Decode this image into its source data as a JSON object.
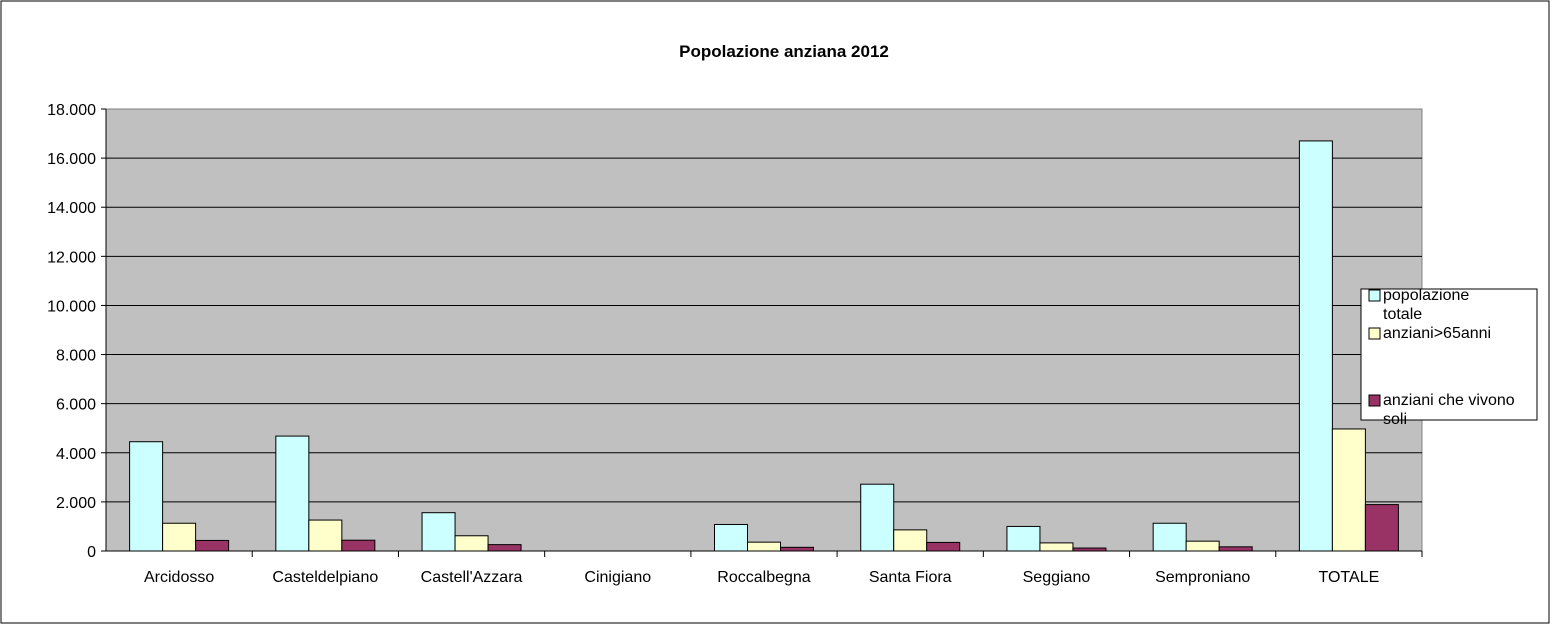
{
  "chart_data": {
    "type": "bar",
    "title": "Popolazione anziana 2012",
    "xlabel": "",
    "ylabel": "",
    "categories": [
      "Arcidosso",
      "Casteldelpiano",
      "Castell'Azzara",
      "Cinigiano",
      "Roccalbegna",
      "Santa Fiora",
      "Seggiano",
      "Semproniano",
      "TOTALE"
    ],
    "series": [
      {
        "name": "popolazione totale",
        "color": "#CCFFFF",
        "values": [
          4450,
          4680,
          1560,
          0,
          1080,
          2720,
          1000,
          1130,
          16700
        ]
      },
      {
        "name": "anziani>65anni",
        "color": "#FFFFCC",
        "values": [
          1130,
          1260,
          620,
          0,
          360,
          860,
          330,
          400,
          4970
        ]
      },
      {
        "name": "anziani che vivono soli",
        "color": "#993366",
        "values": [
          430,
          440,
          260,
          0,
          150,
          350,
          120,
          170,
          1890
        ]
      }
    ],
    "ylim": [
      0,
      18000
    ],
    "yticks": [
      0,
      2000,
      4000,
      6000,
      8000,
      10000,
      12000,
      14000,
      16000,
      18000
    ],
    "ytick_labels": [
      "0",
      "2.000",
      "4.000",
      "6.000",
      "8.000",
      "10.000",
      "12.000",
      "14.000",
      "16.000",
      "18.000"
    ],
    "grid": true,
    "plot_background": "#C0C0C0",
    "legend_position": "right"
  }
}
